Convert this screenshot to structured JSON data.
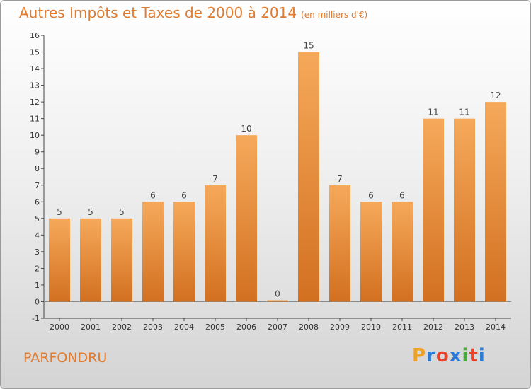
{
  "header": {
    "title": "Autres Impôts et Taxes de 2000 à 2014",
    "unit": "(en milliers d'€)"
  },
  "footer": {
    "commune": "PARFONDRU",
    "logo": {
      "letters": [
        "P",
        "r",
        "o",
        "x",
        "i",
        "t",
        "i"
      ],
      "colors": [
        "#f0a020",
        "#2a7ad4",
        "#e8442c",
        "#2a7ad4",
        "#4aa83a",
        "#e8442c",
        "#2a7ad4"
      ]
    }
  },
  "colors": {
    "bar_top": "#f6a95a",
    "bar_bottom": "#d27020",
    "text_accent": "#e07b30"
  },
  "chart_data": {
    "type": "bar",
    "categories": [
      "2000",
      "2001",
      "2002",
      "2003",
      "2004",
      "2005",
      "2006",
      "2007",
      "2008",
      "2009",
      "2010",
      "2011",
      "2012",
      "2013",
      "2014"
    ],
    "values": [
      5,
      5,
      5,
      6,
      6,
      7,
      10,
      0,
      15,
      7,
      6,
      6,
      11,
      11,
      12
    ],
    "ylim": [
      -1,
      16
    ],
    "yticks": [
      -1,
      0,
      1,
      2,
      3,
      4,
      5,
      6,
      7,
      8,
      9,
      10,
      11,
      12,
      13,
      14,
      15,
      16
    ],
    "grid": false
  }
}
